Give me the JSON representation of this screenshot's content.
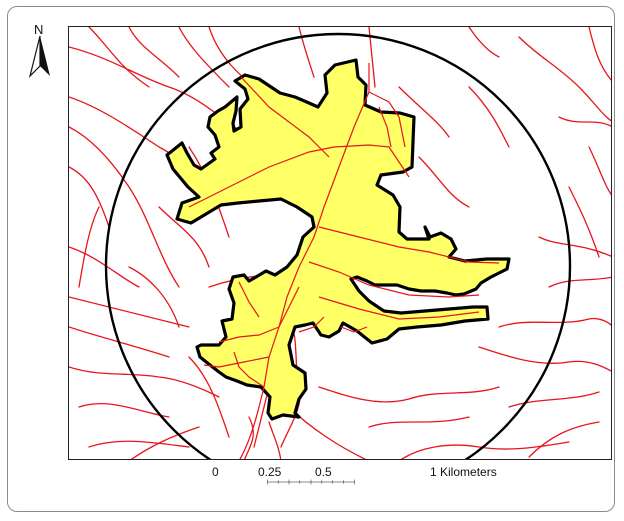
{
  "north_arrow": {
    "label": "N",
    "icon": "north-arrow-icon"
  },
  "scale_bar": {
    "labels": [
      "0",
      "0.25",
      "0.5",
      "1 Kilometers"
    ]
  },
  "colors": {
    "roads": "#e8141c",
    "study_area_fill": "#ffff66",
    "study_area_outline": "#000000",
    "buffer_circle": "#000000",
    "frame": "#8c8c8c"
  },
  "layers": [
    "roads",
    "study-area-polygon",
    "buffer-circle"
  ]
}
